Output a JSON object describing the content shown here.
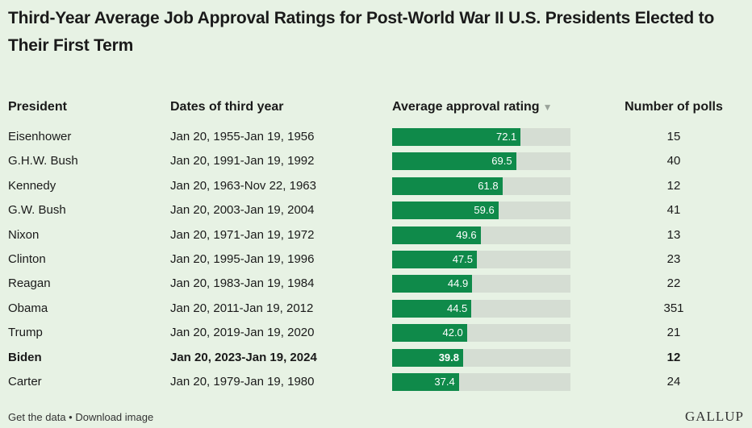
{
  "title": "Third-Year Average Job Approval Ratings for Post-World War II U.S. Presidents Elected to Their First Term",
  "columns": {
    "president": "President",
    "dates": "Dates of third year",
    "approval": "Average approval rating",
    "polls": "Number of polls"
  },
  "sort_icon": "sort-descending-triangle",
  "chart_data": {
    "type": "table",
    "xlim": [
      0,
      100
    ],
    "rows": [
      {
        "president": "Eisenhower",
        "dates": "Jan 20, 1955-Jan 19, 1956",
        "approval": 72.1,
        "approval_label": "72.1",
        "polls": "15",
        "highlight": false
      },
      {
        "president": "G.H.W. Bush",
        "dates": "Jan 20, 1991-Jan 19, 1992",
        "approval": 69.5,
        "approval_label": "69.5",
        "polls": "40",
        "highlight": false
      },
      {
        "president": "Kennedy",
        "dates": "Jan 20, 1963-Nov 22, 1963",
        "approval": 61.8,
        "approval_label": "61.8",
        "polls": "12",
        "highlight": false
      },
      {
        "president": "G.W. Bush",
        "dates": "Jan 20, 2003-Jan 19, 2004",
        "approval": 59.6,
        "approval_label": "59.6",
        "polls": "41",
        "highlight": false
      },
      {
        "president": "Nixon",
        "dates": "Jan 20, 1971-Jan 19, 1972",
        "approval": 49.6,
        "approval_label": "49.6",
        "polls": "13",
        "highlight": false
      },
      {
        "president": "Clinton",
        "dates": "Jan 20, 1995-Jan 19, 1996",
        "approval": 47.5,
        "approval_label": "47.5",
        "polls": "23",
        "highlight": false
      },
      {
        "president": "Reagan",
        "dates": "Jan 20, 1983-Jan 19, 1984",
        "approval": 44.9,
        "approval_label": "44.9",
        "polls": "22",
        "highlight": false
      },
      {
        "president": "Obama",
        "dates": "Jan 20, 2011-Jan 19, 2012",
        "approval": 44.5,
        "approval_label": "44.5",
        "polls": "351",
        "highlight": false
      },
      {
        "president": "Trump",
        "dates": "Jan 20, 2019-Jan 19, 2020",
        "approval": 42.0,
        "approval_label": "42.0",
        "polls": "21",
        "highlight": false
      },
      {
        "president": "Biden",
        "dates": "Jan 20, 2023-Jan 19, 2024",
        "approval": 39.8,
        "approval_label": "39.8",
        "polls": "12",
        "highlight": true
      },
      {
        "president": "Carter",
        "dates": "Jan 20, 1979-Jan 19, 1980",
        "approval": 37.4,
        "approval_label": "37.4",
        "polls": "24",
        "highlight": false
      }
    ]
  },
  "footer": {
    "get_data": "Get the data",
    "separator": " • ",
    "download": "Download image",
    "logo": "GALLUP"
  },
  "colors": {
    "background": "#e7f2e4",
    "bar": "#0f8a4a",
    "track": "#d5ddd3"
  }
}
